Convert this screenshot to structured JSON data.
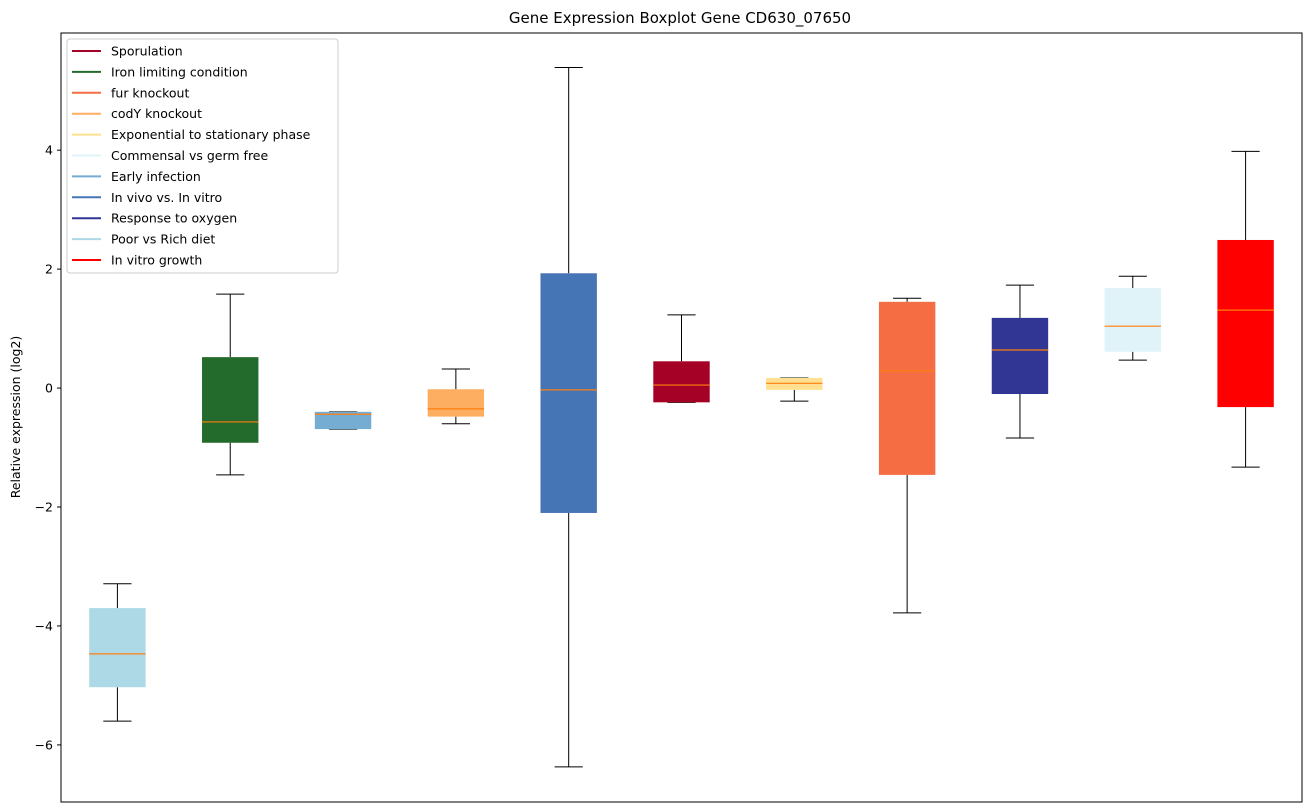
{
  "chart_data": {
    "type": "box",
    "title": "Gene Expression Boxplot Gene CD630_07650",
    "xlabel": "",
    "ylabel": "Relative expression (log2)",
    "ylim": [
      -6.96,
      5.97
    ],
    "yticks": [
      -6,
      -4,
      -2,
      0,
      2,
      4
    ],
    "grid": false,
    "legend_position": "top-left",
    "median_color": "#ff7f0e",
    "legend": [
      {
        "label": "Sporulation",
        "color": "#a50026"
      },
      {
        "label": "Iron limiting condition",
        "color": "#236b2c"
      },
      {
        "label": "fur knockout",
        "color": "#f46d43"
      },
      {
        "label": "codY knockout",
        "color": "#fdae61"
      },
      {
        "label": "Exponential to stationary phase",
        "color": "#fee090"
      },
      {
        "label": "Commensal vs germ free",
        "color": "#e0f3f8"
      },
      {
        "label": "Early infection",
        "color": "#74add1"
      },
      {
        "label": "In vivo vs. In vitro",
        "color": "#4575b4"
      },
      {
        "label": "Response to oxygen",
        "color": "#313695"
      },
      {
        "label": "Poor vs Rich diet",
        "color": "#add8e6"
      },
      {
        "label": "In vitro growth",
        "color": "#ff0000"
      }
    ],
    "boxes": [
      {
        "series": "Poor vs Rich diet",
        "color": "#add8e6",
        "whislo": -5.6,
        "q1": -5.03,
        "med": -4.47,
        "q3": -3.7,
        "whishi": -3.29
      },
      {
        "series": "Iron limiting condition",
        "color": "#236b2c",
        "whislo": -1.46,
        "q1": -0.92,
        "med": -0.57,
        "q3": 0.52,
        "whishi": 1.58
      },
      {
        "series": "Early infection",
        "color": "#74add1",
        "whislo": -0.69,
        "q1": -0.69,
        "med": -0.44,
        "q3": -0.4,
        "whishi": -0.4
      },
      {
        "series": "codY knockout",
        "color": "#fdae61",
        "whislo": -0.6,
        "q1": -0.48,
        "med": -0.35,
        "q3": -0.02,
        "whishi": 0.32
      },
      {
        "series": "In vivo vs. In vitro",
        "color": "#4575b4",
        "whislo": -6.37,
        "q1": -2.1,
        "med": -0.03,
        "q3": 1.93,
        "whishi": 5.39
      },
      {
        "series": "Sporulation",
        "color": "#a50026",
        "whislo": -0.24,
        "q1": -0.24,
        "med": 0.05,
        "q3": 0.45,
        "whishi": 1.23
      },
      {
        "series": "Exponential to stationary phase",
        "color": "#fee090",
        "whislo": -0.22,
        "q1": -0.03,
        "med": 0.08,
        "q3": 0.17,
        "whishi": 0.17
      },
      {
        "series": "fur knockout",
        "color": "#f46d43",
        "whislo": -3.78,
        "q1": -1.46,
        "med": 0.29,
        "q3": 1.45,
        "whishi": 1.51
      },
      {
        "series": "Response to oxygen",
        "color": "#313695",
        "whislo": -0.84,
        "q1": -0.1,
        "med": 0.64,
        "q3": 1.18,
        "whishi": 1.73
      },
      {
        "series": "Commensal vs germ free",
        "color": "#e0f3f8",
        "whislo": 0.47,
        "q1": 0.61,
        "med": 1.04,
        "q3": 1.68,
        "whishi": 1.88
      },
      {
        "series": "In vitro growth",
        "color": "#ff0000",
        "whislo": -1.33,
        "q1": -0.32,
        "med": 1.31,
        "q3": 2.49,
        "whishi": 3.98
      }
    ]
  }
}
